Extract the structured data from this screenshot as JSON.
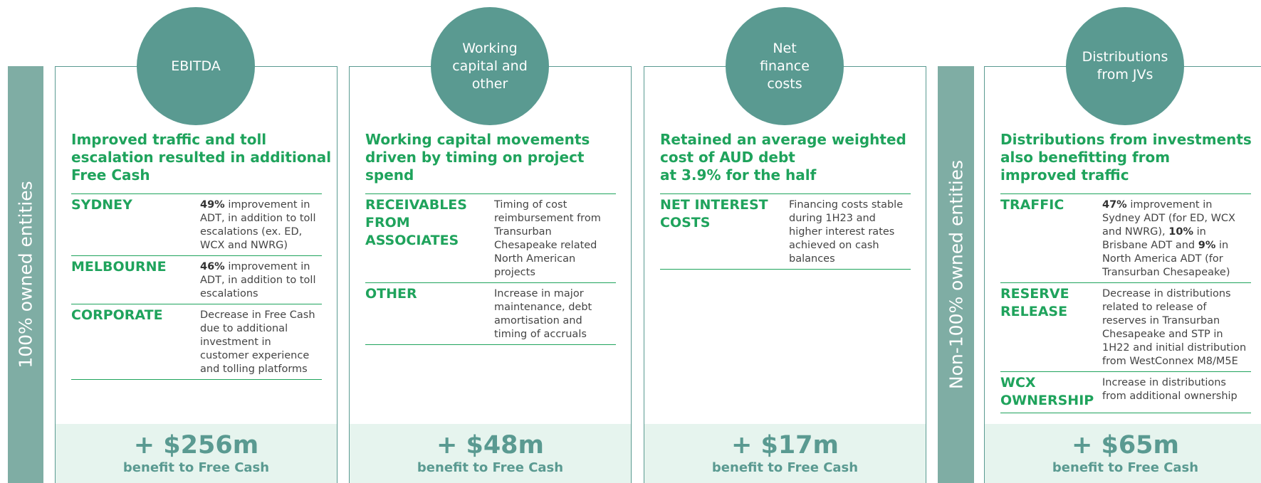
{
  "side_labels": [
    "100% owned entities",
    "Non-100% owned entities"
  ],
  "panels": [
    {
      "circle": [
        "EBITDA"
      ],
      "heading": [
        "Improved traffic and toll",
        "escalation resulted in additional",
        "Free Cash"
      ],
      "rows": [
        {
          "label": "SYDNEY",
          "description": [
            {
              "text": "49%",
              "bold": true
            },
            {
              "text": " improvement in ADT, in addition to toll escalations (ex. ED, WCX and NWRG)"
            }
          ]
        },
        {
          "label": "MELBOURNE",
          "description": [
            {
              "text": "46%",
              "bold": true
            },
            {
              "text": " improvement in ADT, in addition to toll escalations"
            }
          ]
        },
        {
          "label": "CORPORATE",
          "description": [
            {
              "text": "Decrease in Free Cash due to additional investment in customer experience and tolling platforms"
            }
          ]
        }
      ],
      "amount": "+ $256m",
      "amount_note": "benefit to Free Cash"
    },
    {
      "circle": [
        "Working",
        "capital and",
        "other"
      ],
      "heading": [
        "Working capital movements",
        "driven by timing on project spend"
      ],
      "rows": [
        {
          "label": "RECEIVABLES FROM ASSOCIATES",
          "description": [
            {
              "text": "Timing of cost reimbursement from Transurban Chesapeake related North American projects"
            }
          ]
        },
        {
          "label": "OTHER",
          "description": [
            {
              "text": "Increase in major maintenance, debt amortisation and timing of accruals"
            }
          ]
        }
      ],
      "amount": "+ $48m",
      "amount_note": "benefit to Free Cash"
    },
    {
      "circle": [
        "Net",
        "finance",
        "costs"
      ],
      "heading": [
        "Retained an average weighted",
        "cost of AUD debt",
        "at 3.9% for the half"
      ],
      "rows": [
        {
          "label": "NET INTEREST COSTS",
          "description": [
            {
              "text": "Financing costs stable during 1H23 and higher interest rates achieved on cash balances"
            }
          ]
        }
      ],
      "amount": "+ $17m",
      "amount_note": "benefit to Free Cash"
    },
    {
      "circle": [
        "Distributions",
        "from JVs"
      ],
      "heading": [
        "Distributions from investments",
        "also benefitting from",
        "improved traffic"
      ],
      "rows": [
        {
          "label": "TRAFFIC",
          "description": [
            {
              "text": "47%",
              "bold": true
            },
            {
              "text": " improvement in Sydney ADT (for ED, WCX and NWRG), "
            },
            {
              "text": "10%",
              "bold": true
            },
            {
              "text": " in Brisbane ADT and "
            },
            {
              "text": "9%",
              "bold": true
            },
            {
              "text": " in North America ADT (for Transurban Chesapeake)"
            }
          ]
        },
        {
          "label": "RESERVE RELEASE",
          "description": [
            {
              "text": "Decrease in distributions related to release of reserves in Transurban Chesapeake and STP in 1H22 and initial distribution from WestConnex M8/M5E"
            }
          ]
        },
        {
          "label": "WCX OWNERSHIP",
          "description": [
            {
              "text": "Increase in distributions from additional ownership"
            }
          ]
        }
      ],
      "amount": "+ $65m",
      "amount_note": "benefit to Free Cash"
    }
  ]
}
